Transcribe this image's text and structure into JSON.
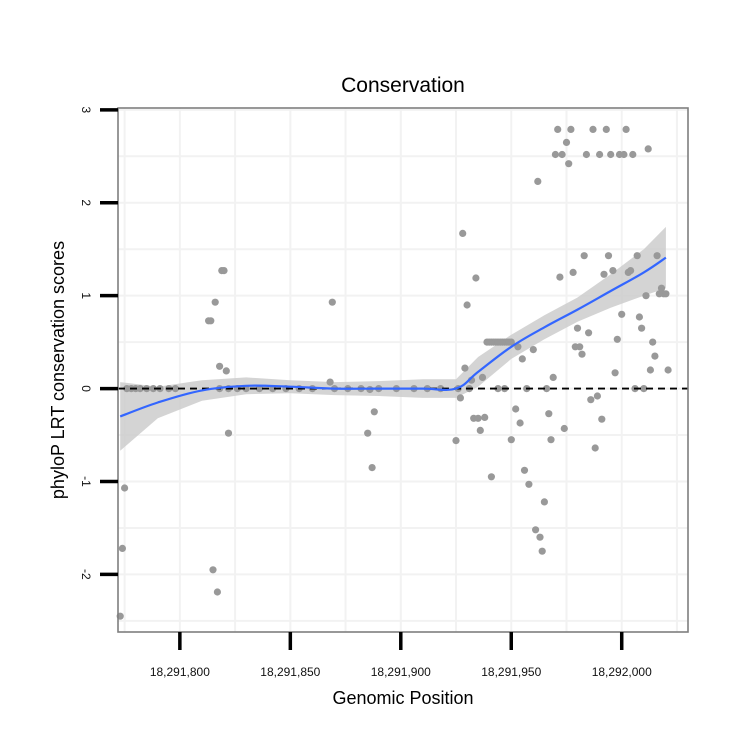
{
  "chart_data": {
    "type": "scatter",
    "title": "Conservation",
    "xlabel": "Genomic Position",
    "ylabel": "phyloP LRT conservation scores",
    "xlim": [
      18291772,
      18292030
    ],
    "ylim": [
      -2.62,
      3.02
    ],
    "x_ticks": [
      {
        "value": 18291800,
        "label": "18,291,800"
      },
      {
        "value": 18291850,
        "label": "18,291,850"
      },
      {
        "value": 18291900,
        "label": "18,291,900"
      },
      {
        "value": 18291950,
        "label": "18,291,950"
      },
      {
        "value": 18292000,
        "label": "18,292,000"
      }
    ],
    "y_ticks": [
      {
        "value": -2,
        "label": "-2"
      },
      {
        "value": -1,
        "label": "-1"
      },
      {
        "value": 0,
        "label": "0"
      },
      {
        "value": 1,
        "label": "1"
      },
      {
        "value": 2,
        "label": "2"
      },
      {
        "value": 3,
        "label": "3"
      }
    ],
    "reference_line": {
      "y": 0,
      "style": "dashed"
    },
    "colors": {
      "points": "#999999",
      "smooth": "#3366ff",
      "band": "#cccccc",
      "grid": "#f2f2f2",
      "frame": "#7f7f7f"
    },
    "points": [
      [
        18291773,
        -2.45
      ],
      [
        18291774,
        -1.72
      ],
      [
        18291775,
        -1.07
      ],
      [
        18291776,
        0.0
      ],
      [
        18291778,
        0.0
      ],
      [
        18291780,
        0.0
      ],
      [
        18291782,
        0.0
      ],
      [
        18291785,
        0.0
      ],
      [
        18291788,
        0.0
      ],
      [
        18291791,
        0.0
      ],
      [
        18291795,
        0.0
      ],
      [
        18291798,
        0.0
      ],
      [
        18291813,
        0.73
      ],
      [
        18291814,
        0.73
      ],
      [
        18291815,
        -1.95
      ],
      [
        18291816,
        0.93
      ],
      [
        18291817,
        -2.19
      ],
      [
        18291818,
        0.24
      ],
      [
        18291819,
        1.27
      ],
      [
        18291820,
        1.27
      ],
      [
        18291821,
        0.19
      ],
      [
        18291822,
        -0.48
      ],
      [
        18291818,
        0.0
      ],
      [
        18291822,
        0.0
      ],
      [
        18291826,
        0.0
      ],
      [
        18291830,
        0.0
      ],
      [
        18291836,
        0.0
      ],
      [
        18291842,
        0.0
      ],
      [
        18291848,
        0.0
      ],
      [
        18291854,
        0.0
      ],
      [
        18291860,
        0.0
      ],
      [
        18291869,
        0.93
      ],
      [
        18291868,
        0.07
      ],
      [
        18291870,
        0.0
      ],
      [
        18291876,
        0.0
      ],
      [
        18291882,
        0.0
      ],
      [
        18291885,
        -0.48
      ],
      [
        18291886,
        -0.01
      ],
      [
        18291887,
        -0.85
      ],
      [
        18291888,
        -0.25
      ],
      [
        18291890,
        0.0
      ],
      [
        18291898,
        0.0
      ],
      [
        18291906,
        0.0
      ],
      [
        18291912,
        0.0
      ],
      [
        18291918,
        0.0
      ],
      [
        18291925,
        -0.56
      ],
      [
        18291926,
        0.0
      ],
      [
        18291927,
        -0.1
      ],
      [
        18291928,
        1.67
      ],
      [
        18291929,
        0.22
      ],
      [
        18291930,
        0.9
      ],
      [
        18291931,
        0.0
      ],
      [
        18291932,
        0.09
      ],
      [
        18291933,
        -0.32
      ],
      [
        18291934,
        1.19
      ],
      [
        18291935,
        -0.32
      ],
      [
        18291936,
        -0.45
      ],
      [
        18291937,
        0.12
      ],
      [
        18291938,
        -0.31
      ],
      [
        18291939,
        0.5
      ],
      [
        18291940,
        0.5
      ],
      [
        18291941,
        0.5
      ],
      [
        18291942,
        0.5
      ],
      [
        18291943,
        0.5
      ],
      [
        18291944,
        0.5
      ],
      [
        18291945,
        0.5
      ],
      [
        18291946,
        0.5
      ],
      [
        18291947,
        0.5
      ],
      [
        18291948,
        0.5
      ],
      [
        18291949,
        0.5
      ],
      [
        18291950,
        0.5
      ],
      [
        18291941,
        -0.95
      ],
      [
        18291944,
        0.0
      ],
      [
        18291947,
        0.0
      ],
      [
        18291950,
        -0.55
      ],
      [
        18291952,
        -0.22
      ],
      [
        18291953,
        0.45
      ],
      [
        18291954,
        -0.37
      ],
      [
        18291955,
        0.32
      ],
      [
        18291956,
        -0.88
      ],
      [
        18291957,
        0.0
      ],
      [
        18291958,
        -1.03
      ],
      [
        18291960,
        0.42
      ],
      [
        18291961,
        -1.52
      ],
      [
        18291962,
        2.23
      ],
      [
        18291963,
        -1.6
      ],
      [
        18291964,
        -1.75
      ],
      [
        18291965,
        -1.22
      ],
      [
        18291966,
        0.0
      ],
      [
        18291967,
        -0.27
      ],
      [
        18291968,
        -0.55
      ],
      [
        18291969,
        0.12
      ],
      [
        18291970,
        2.52
      ],
      [
        18291971,
        2.79
      ],
      [
        18291972,
        1.2
      ],
      [
        18291973,
        2.52
      ],
      [
        18291974,
        -0.43
      ],
      [
        18291975,
        2.65
      ],
      [
        18291976,
        2.42
      ],
      [
        18291977,
        2.79
      ],
      [
        18291978,
        1.25
      ],
      [
        18291979,
        0.45
      ],
      [
        18291980,
        0.65
      ],
      [
        18291981,
        0.45
      ],
      [
        18291982,
        0.37
      ],
      [
        18291983,
        1.43
      ],
      [
        18291984,
        2.52
      ],
      [
        18291985,
        0.6
      ],
      [
        18291986,
        -0.12
      ],
      [
        18291987,
        2.79
      ],
      [
        18291988,
        -0.64
      ],
      [
        18291989,
        -0.08
      ],
      [
        18291990,
        2.52
      ],
      [
        18291991,
        -0.33
      ],
      [
        18291992,
        1.23
      ],
      [
        18291993,
        2.79
      ],
      [
        18291994,
        1.43
      ],
      [
        18291995,
        2.52
      ],
      [
        18291996,
        1.27
      ],
      [
        18291997,
        0.17
      ],
      [
        18291998,
        0.53
      ],
      [
        18291999,
        2.52
      ],
      [
        18292000,
        0.8
      ],
      [
        18292001,
        2.52
      ],
      [
        18292002,
        2.79
      ],
      [
        18292003,
        1.25
      ],
      [
        18292004,
        1.27
      ],
      [
        18292005,
        2.52
      ],
      [
        18292006,
        0.0
      ],
      [
        18292007,
        1.43
      ],
      [
        18292008,
        0.77
      ],
      [
        18292009,
        0.65
      ],
      [
        18292010,
        0.0
      ],
      [
        18292011,
        1.0
      ],
      [
        18292012,
        2.58
      ],
      [
        18292013,
        0.2
      ],
      [
        18292014,
        0.5
      ],
      [
        18292015,
        0.35
      ],
      [
        18292016,
        1.43
      ],
      [
        18292017,
        1.02
      ],
      [
        18292018,
        1.08
      ],
      [
        18292019,
        1.02
      ],
      [
        18292020,
        1.02
      ],
      [
        18292021,
        0.2
      ]
    ],
    "smooth": {
      "method": "loess",
      "x": [
        18291773,
        18291790,
        18291810,
        18291830,
        18291850,
        18291870,
        18291890,
        18291910,
        18291925,
        18291935,
        18291950,
        18291965,
        18291980,
        18291995,
        18292010,
        18292020
      ],
      "y": [
        -0.3,
        -0.15,
        -0.02,
        0.03,
        0.02,
        0.0,
        0.0,
        0.0,
        0.0,
        0.18,
        0.45,
        0.66,
        0.85,
        1.05,
        1.25,
        1.41
      ],
      "lower": [
        -0.67,
        -0.32,
        -0.13,
        -0.06,
        -0.05,
        -0.07,
        -0.08,
        -0.1,
        -0.1,
        0.02,
        0.32,
        0.53,
        0.72,
        0.87,
        1.0,
        1.08
      ],
      "upper": [
        0.07,
        0.02,
        0.09,
        0.12,
        0.09,
        0.07,
        0.08,
        0.1,
        0.1,
        0.34,
        0.58,
        0.79,
        0.98,
        1.23,
        1.5,
        1.74
      ]
    }
  }
}
